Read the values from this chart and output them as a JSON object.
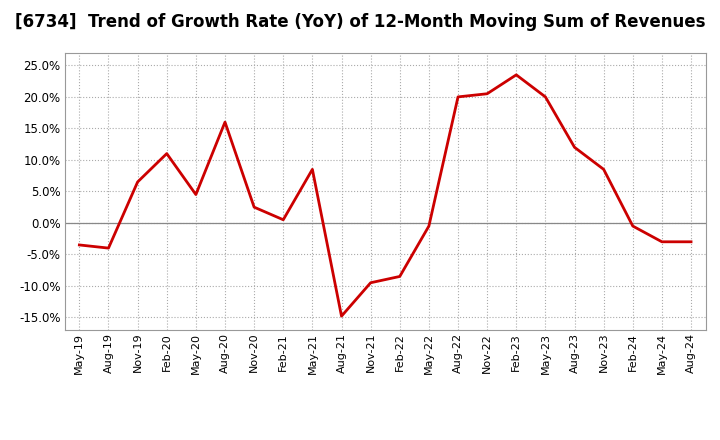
{
  "title": "[6734]  Trend of Growth Rate (YoY) of 12-Month Moving Sum of Revenues",
  "title_fontsize": 12,
  "line_color": "#CC0000",
  "background_color": "#FFFFFF",
  "plot_bg_color": "#FFFFFF",
  "grid_color": "#AAAAAA",
  "zero_line_color": "#888888",
  "ylim": [
    -0.17,
    0.27
  ],
  "yticks": [
    -0.15,
    -0.1,
    -0.05,
    0.0,
    0.05,
    0.1,
    0.15,
    0.2,
    0.25
  ],
  "values": [
    -0.035,
    -0.04,
    0.065,
    0.11,
    0.045,
    0.16,
    0.025,
    0.005,
    0.085,
    -0.148,
    -0.095,
    -0.085,
    -0.005,
    0.2,
    0.205,
    0.235,
    0.2,
    0.12,
    0.085,
    -0.005,
    -0.03,
    -0.03
  ],
  "xtick_labels": [
    "May-19",
    "Aug-19",
    "Nov-19",
    "Feb-20",
    "May-20",
    "Aug-20",
    "Nov-20",
    "Feb-21",
    "May-21",
    "Aug-21",
    "Nov-21",
    "Feb-22",
    "May-22",
    "Aug-22",
    "Nov-22",
    "Feb-23",
    "May-23",
    "Aug-23",
    "Nov-23",
    "Feb-24",
    "May-24",
    "Aug-24"
  ],
  "line_width": 2.0,
  "tick_fontsize": 8.0,
  "ytick_fontsize": 8.5
}
